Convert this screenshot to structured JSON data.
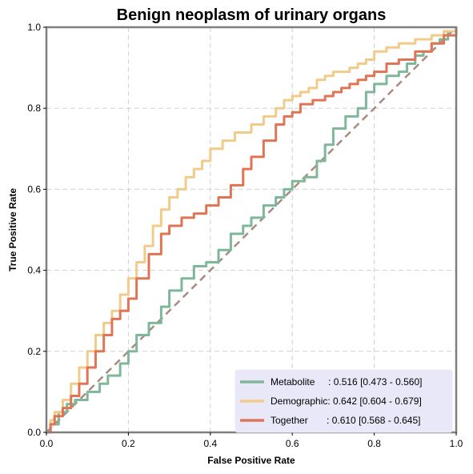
{
  "chart_data": {
    "type": "line",
    "title": "Benign neoplasm of urinary organs",
    "xlabel": "False Positive Rate",
    "ylabel": "True Positive Rate",
    "xlim": [
      0,
      1
    ],
    "ylim": [
      0,
      1
    ],
    "xticks": [
      "0.0",
      "0.2",
      "0.4",
      "0.6",
      "0.8",
      "1.0"
    ],
    "yticks": [
      "0.0",
      "0.2",
      "0.4",
      "0.6",
      "0.8",
      "1.0"
    ],
    "grid": true,
    "legend_position": "bottom-right",
    "series": [
      {
        "name": "Metabolite",
        "label": "Metabolite     : 0.516 [0.473 - 0.560]",
        "color": "#7fb79a",
        "x": [
          0.0,
          0.01,
          0.03,
          0.05,
          0.07,
          0.1,
          0.13,
          0.15,
          0.18,
          0.2,
          0.22,
          0.25,
          0.28,
          0.3,
          0.33,
          0.36,
          0.39,
          0.42,
          0.45,
          0.48,
          0.5,
          0.53,
          0.56,
          0.58,
          0.6,
          0.63,
          0.66,
          0.68,
          0.7,
          0.73,
          0.76,
          0.78,
          0.8,
          0.83,
          0.86,
          0.88,
          0.9,
          0.92,
          0.94,
          0.96,
          0.98,
          1.0
        ],
        "y": [
          0.0,
          0.02,
          0.05,
          0.07,
          0.08,
          0.1,
          0.12,
          0.14,
          0.17,
          0.2,
          0.24,
          0.27,
          0.31,
          0.35,
          0.38,
          0.41,
          0.42,
          0.45,
          0.49,
          0.51,
          0.53,
          0.56,
          0.58,
          0.6,
          0.62,
          0.63,
          0.67,
          0.71,
          0.75,
          0.78,
          0.8,
          0.84,
          0.86,
          0.88,
          0.89,
          0.91,
          0.93,
          0.94,
          0.96,
          0.97,
          0.99,
          1.0
        ]
      },
      {
        "name": "Demographic",
        "label": "Demographic: 0.642 [0.604 - 0.679]",
        "color": "#f2cb8a",
        "x": [
          0.0,
          0.01,
          0.02,
          0.04,
          0.06,
          0.08,
          0.1,
          0.12,
          0.14,
          0.16,
          0.18,
          0.2,
          0.22,
          0.24,
          0.26,
          0.28,
          0.3,
          0.32,
          0.34,
          0.36,
          0.38,
          0.4,
          0.43,
          0.46,
          0.5,
          0.53,
          0.56,
          0.58,
          0.6,
          0.62,
          0.64,
          0.66,
          0.68,
          0.7,
          0.72,
          0.74,
          0.76,
          0.78,
          0.8,
          0.83,
          0.86,
          0.9,
          0.94,
          0.97,
          1.0
        ],
        "y": [
          0.0,
          0.03,
          0.05,
          0.08,
          0.12,
          0.16,
          0.2,
          0.24,
          0.27,
          0.3,
          0.34,
          0.38,
          0.42,
          0.46,
          0.51,
          0.55,
          0.58,
          0.6,
          0.63,
          0.65,
          0.67,
          0.7,
          0.72,
          0.74,
          0.76,
          0.78,
          0.8,
          0.82,
          0.83,
          0.84,
          0.85,
          0.87,
          0.88,
          0.89,
          0.89,
          0.9,
          0.91,
          0.92,
          0.94,
          0.95,
          0.96,
          0.97,
          0.98,
          0.99,
          1.0
        ]
      },
      {
        "name": "Together",
        "label": "Together       : 0.610 [0.568 - 0.645]",
        "color": "#e07556",
        "x": [
          0.0,
          0.01,
          0.02,
          0.04,
          0.06,
          0.08,
          0.1,
          0.12,
          0.14,
          0.16,
          0.18,
          0.2,
          0.22,
          0.25,
          0.28,
          0.3,
          0.33,
          0.36,
          0.39,
          0.42,
          0.45,
          0.48,
          0.5,
          0.53,
          0.56,
          0.58,
          0.6,
          0.62,
          0.65,
          0.68,
          0.7,
          0.72,
          0.74,
          0.76,
          0.78,
          0.8,
          0.83,
          0.86,
          0.9,
          0.94,
          0.97,
          1.0
        ],
        "y": [
          0.0,
          0.02,
          0.04,
          0.06,
          0.09,
          0.12,
          0.16,
          0.2,
          0.24,
          0.28,
          0.3,
          0.33,
          0.38,
          0.44,
          0.49,
          0.51,
          0.53,
          0.54,
          0.56,
          0.58,
          0.61,
          0.65,
          0.68,
          0.72,
          0.76,
          0.78,
          0.79,
          0.81,
          0.82,
          0.83,
          0.84,
          0.85,
          0.86,
          0.87,
          0.88,
          0.89,
          0.91,
          0.92,
          0.94,
          0.96,
          0.98,
          1.0
        ]
      }
    ],
    "reference_line": {
      "x": [
        0,
        1
      ],
      "y": [
        0,
        1
      ],
      "color": "#a98a80",
      "style": "dashed"
    }
  }
}
